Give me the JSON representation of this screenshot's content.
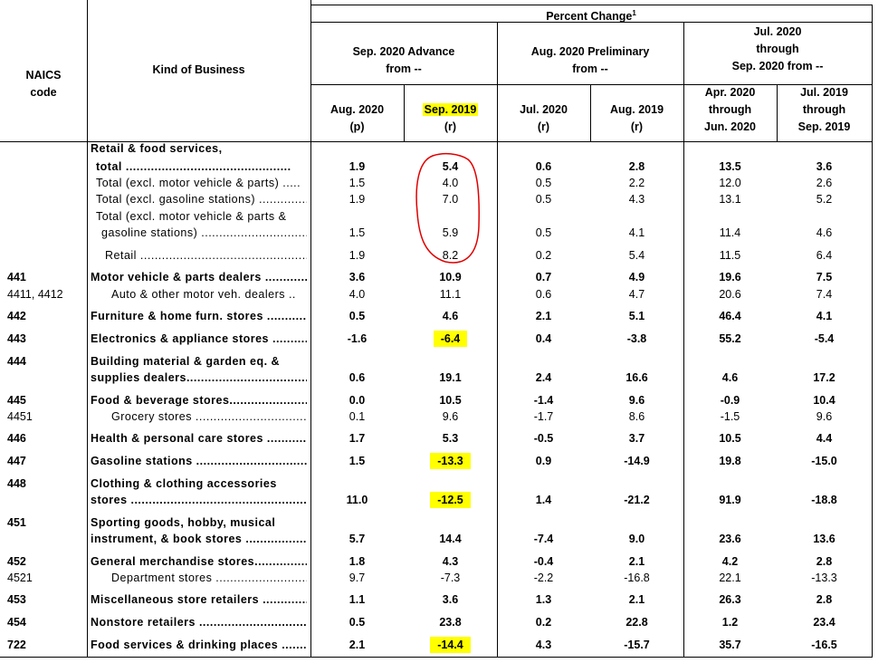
{
  "header": {
    "percent_change": "Percent Change",
    "footnote": "1",
    "naics_l1": "NAICS",
    "naics_l2": "code",
    "kind": "Kind of Business",
    "g1_l1": "Sep. 2020 Advance",
    "g1_l2": "from --",
    "g2_l1": "Aug. 2020 Preliminary",
    "g2_l2": "from --",
    "g3_l1": "Jul. 2020",
    "g3_l2": "through",
    "g3_l3": "Sep. 2020 from --",
    "col1_l1": "Aug. 2020",
    "col1_l2": "(p)",
    "col2_l1": "Sep. 2019",
    "col2_l2": "(r)",
    "col3_l1": "Jul. 2020",
    "col3_l2": "(r)",
    "col4_l1": "Aug. 2019",
    "col4_l2": "(r)",
    "col5_l1": "Apr. 2020",
    "col5_l2": "through",
    "col5_l3": "Jun. 2020",
    "col6_l1": "Jul. 2019",
    "col6_l2": "through",
    "col6_l3": "Sep. 2019"
  },
  "rows": [
    {
      "code": "",
      "name": "Retail & food services,",
      "v": [
        "",
        "",
        "",
        "",
        "",
        ""
      ]
    },
    {
      "code": "",
      "name": "total ..............................................",
      "v": [
        "1.9",
        "5.4",
        "0.6",
        "2.8",
        "13.5",
        "3.6"
      ]
    },
    {
      "code": "",
      "name": "Total (excl. motor vehicle & parts) .....",
      "v": [
        "1.5",
        "4.0",
        "0.5",
        "2.2",
        "12.0",
        "2.6"
      ]
    },
    {
      "code": "",
      "name": "Total (excl. gasoline stations) ................",
      "v": [
        "1.9",
        "7.0",
        "0.5",
        "4.3",
        "13.1",
        "5.2"
      ]
    },
    {
      "code": "",
      "name": "Total (excl. motor vehicle & parts &",
      "v": [
        "",
        "",
        "",
        "",
        "",
        ""
      ]
    },
    {
      "code": "",
      "name": "gasoline stations) .....................................",
      "v": [
        "1.5",
        "5.9",
        "0.5",
        "4.1",
        "11.4",
        "4.6"
      ]
    },
    {
      "code": "",
      "name": "Retail .................................................",
      "v": [
        "1.9",
        "8.2",
        "0.2",
        "5.4",
        "11.5",
        "6.4"
      ]
    },
    {
      "code": "441",
      "name": "Motor vehicle & parts dealers ...............",
      "v": [
        "3.6",
        "10.9",
        "0.7",
        "4.9",
        "19.6",
        "7.5"
      ]
    },
    {
      "code": "4411, 4412",
      "name": "Auto & other motor veh. dealers ..",
      "v": [
        "4.0",
        "11.1",
        "0.6",
        "4.7",
        "20.6",
        "7.4"
      ]
    },
    {
      "code": "442",
      "name": "Furniture & home furn. stores ...............",
      "v": [
        "0.5",
        "4.6",
        "2.1",
        "5.1",
        "46.4",
        "4.1"
      ]
    },
    {
      "code": "443",
      "name": "Electronics & appliance stores ..............",
      "v": [
        "-1.6",
        "-6.4",
        "0.4",
        "-3.8",
        "55.2",
        "-5.4"
      ]
    },
    {
      "code": "444",
      "name": "Building material & garden eq. &",
      "v": [
        "",
        "",
        "",
        "",
        "",
        ""
      ]
    },
    {
      "code": "",
      "name": "supplies dealers..........................................",
      "v": [
        "0.6",
        "19.1",
        "2.4",
        "16.6",
        "4.6",
        "17.2"
      ]
    },
    {
      "code": "445",
      "name": "Food & beverage stores...........................",
      "v": [
        "0.0",
        "10.5",
        "-1.4",
        "9.6",
        "-0.9",
        "10.4"
      ]
    },
    {
      "code": "4451",
      "name": "Grocery stores .....................................",
      "v": [
        "0.1",
        "9.6",
        "-1.7",
        "8.6",
        "-1.5",
        "9.6"
      ]
    },
    {
      "code": "446",
      "name": "Health & personal care stores ...............",
      "v": [
        "1.7",
        "5.3",
        "-0.5",
        "3.7",
        "10.5",
        "4.4"
      ]
    },
    {
      "code": "447",
      "name": "Gasoline stations ...................................",
      "v": [
        "1.5",
        "-13.3",
        "0.9",
        "-14.9",
        "19.8",
        "-15.0"
      ]
    },
    {
      "code": "448",
      "name": "Clothing & clothing accessories",
      "v": [
        "",
        "",
        "",
        "",
        "",
        ""
      ]
    },
    {
      "code": "",
      "name": "stores ...........................................................",
      "v": [
        "11.0",
        "-12.5",
        "1.4",
        "-21.2",
        "91.9",
        "-18.8"
      ]
    },
    {
      "code": "451",
      "name": "Sporting goods, hobby, musical",
      "v": [
        "",
        "",
        "",
        "",
        "",
        ""
      ]
    },
    {
      "code": "",
      "name": "instrument, & book stores ....................",
      "v": [
        "5.7",
        "14.4",
        "-7.4",
        "9.0",
        "23.6",
        "13.6"
      ]
    },
    {
      "code": "452",
      "name": "General merchandise stores....................",
      "v": [
        "1.8",
        "4.3",
        "-0.4",
        "2.1",
        "4.2",
        "2.8"
      ]
    },
    {
      "code": "4521",
      "name": "Department stores ...............................",
      "v": [
        "9.7",
        "-7.3",
        "-2.2",
        "-16.8",
        "22.1",
        "-13.3"
      ]
    },
    {
      "code": "453",
      "name": "Miscellaneous store retailers .................",
      "v": [
        "1.1",
        "3.6",
        "1.3",
        "2.1",
        "26.3",
        "2.8"
      ]
    },
    {
      "code": "454",
      "name": "Nonstore retailers ....................................",
      "v": [
        "0.5",
        "23.8",
        "0.2",
        "22.8",
        "1.2",
        "23.4"
      ]
    },
    {
      "code": "722",
      "name": "Food services & drinking places ............",
      "v": [
        "2.1",
        "-14.4",
        "4.3",
        "-15.7",
        "35.7",
        "-16.5"
      ]
    }
  ],
  "colors": {
    "highlight": "#ffff00",
    "annotation": "#e00000"
  }
}
